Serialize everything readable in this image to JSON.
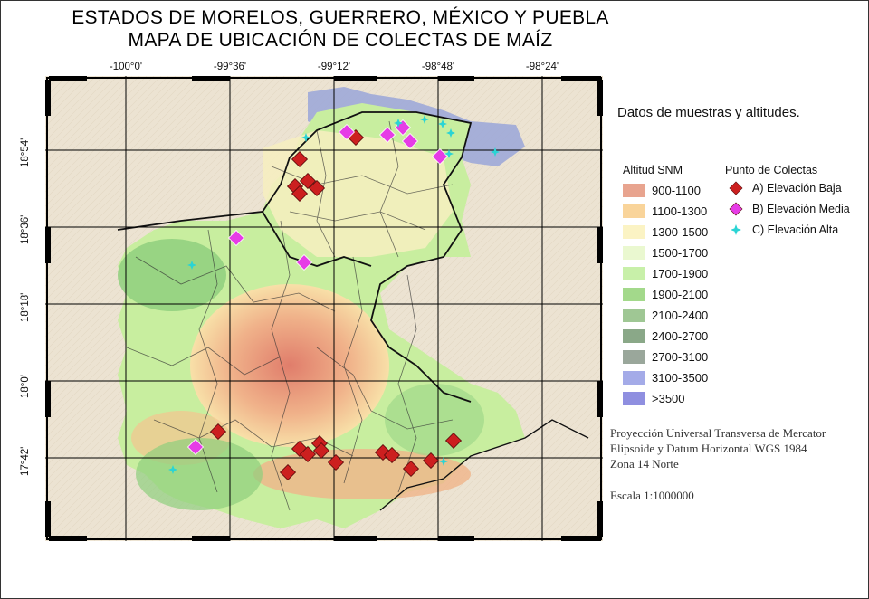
{
  "title": {
    "line1": "ESTADOS DE MORELOS, GUERRERO,  MÉXICO Y PUEBLA",
    "line2": "MAPA DE UBICACIÓN DE COLECTAS DE MAÍZ"
  },
  "graticule": {
    "lon_labels": [
      "-100°0'",
      "-99°36'",
      "-99°12'",
      "-98°48'",
      "-98°24'"
    ],
    "lat_labels": [
      "18°54'",
      "18°36'",
      "18°18'",
      "18°0'",
      "17°42'"
    ]
  },
  "legend": {
    "title": "Datos de muestras y altitudes.",
    "altitude_header": "Altitud SNM",
    "altitude_classes": [
      {
        "label": "900-1100",
        "color": "#e8a48f"
      },
      {
        "label": "1100-1300",
        "color": "#f9d49a"
      },
      {
        "label": "1300-1500",
        "color": "#fbf3c4"
      },
      {
        "label": "1500-1700",
        "color": "#eaf8d0"
      },
      {
        "label": "1700-1900",
        "color": "#c8f0a9"
      },
      {
        "label": "1900-2100",
        "color": "#a3d98b"
      },
      {
        "label": "2100-2400",
        "color": "#9fc794"
      },
      {
        "label": "2400-2700",
        "color": "#8aa888"
      },
      {
        "label": "2700-3100",
        "color": "#9aa79b"
      },
      {
        "label": "3100-3500",
        "color": "#a4abe8"
      },
      {
        "label": ">3500",
        "color": "#8f8fe0"
      }
    ],
    "points_header": "Punto de Colectas",
    "point_classes": [
      {
        "label": "A) Elevación Baja",
        "shape": "diamond-icon",
        "color": "#cc1f1f"
      },
      {
        "label": "B) Elevación Media",
        "shape": "diamond-icon",
        "color": "#e63ce6"
      },
      {
        "label": "C) Elevación Alta",
        "shape": "star-icon",
        "color": "#2ad4d4"
      }
    ]
  },
  "map_info": {
    "line1": "Proyección Universal Transversa de Mercator",
    "line2": "Elipsoide y Datum Horizontal WGS 1984",
    "line3": "Zona 14 Norte",
    "scale": "Escala 1:1000000"
  }
}
